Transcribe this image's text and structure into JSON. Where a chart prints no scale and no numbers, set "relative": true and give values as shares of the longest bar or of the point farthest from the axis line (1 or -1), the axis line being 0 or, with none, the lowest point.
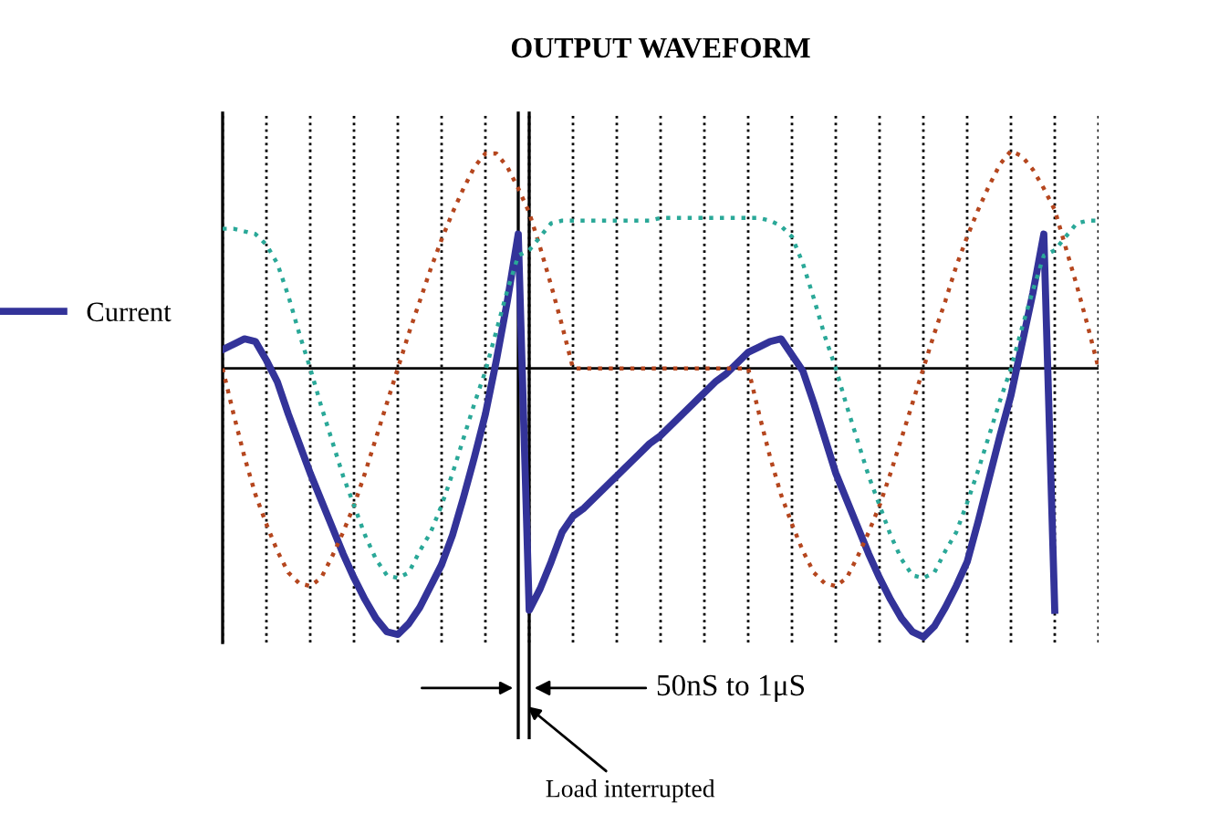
{
  "chart_data": {
    "type": "line",
    "title": "OUTPUT WAVEFORM",
    "relative": true,
    "grid": "x",
    "legend": "left",
    "categories": [
      null,
      null,
      null,
      null,
      null,
      null,
      null,
      null,
      null,
      null,
      null,
      null,
      null,
      null,
      null,
      null,
      null,
      null,
      null,
      null,
      null,
      null,
      null,
      null,
      null,
      null,
      null,
      null,
      null,
      null,
      null,
      null,
      null,
      null,
      null,
      null,
      null,
      null,
      null,
      null,
      null,
      null,
      null,
      null,
      null,
      null,
      null,
      null,
      null,
      null,
      null,
      null,
      null,
      null,
      null,
      null,
      null,
      null,
      null,
      null,
      null,
      null,
      null,
      null,
      null,
      null,
      null,
      null,
      null,
      null,
      null,
      null,
      null,
      null,
      null,
      null,
      null,
      null,
      null,
      null,
      null
    ],
    "series": [
      {
        "name": "Current",
        "color": "#333399",
        "line_style": "solid",
        "values": [
          0.07,
          0.09,
          0.11,
          0.1,
          0.03,
          -0.05,
          -0.17,
          -0.28,
          -0.39,
          -0.49,
          -0.59,
          -0.69,
          -0.78,
          -0.86,
          -0.93,
          -0.98,
          -0.99,
          -0.95,
          -0.89,
          -0.81,
          -0.73,
          -0.62,
          -0.48,
          -0.33,
          -0.17,
          0.03,
          0.25,
          0.5,
          -0.9,
          -0.82,
          -0.72,
          -0.61,
          -0.55,
          -0.52,
          -0.48,
          -0.44,
          -0.4,
          -0.36,
          -0.32,
          -0.28,
          -0.25,
          -0.21,
          -0.17,
          -0.13,
          -0.09,
          -0.05,
          -0.02,
          0.02,
          0.06,
          0.08,
          0.1,
          0.11,
          0.05,
          -0.01,
          -0.13,
          -0.26,
          -0.39,
          -0.49,
          -0.59,
          -0.69,
          -0.78,
          -0.86,
          -0.93,
          -0.98,
          -1.0,
          -0.96,
          -0.89,
          -0.81,
          -0.72,
          -0.57,
          -0.41,
          -0.25,
          -0.1,
          0.09,
          0.28,
          0.5,
          -0.9,
          null,
          null,
          null,
          null
        ]
      },
      {
        "color": "#b5461e",
        "line_style": "dotted",
        "values": [
          0,
          -0.17,
          -0.33,
          -0.47,
          -0.58,
          -0.68,
          -0.76,
          -0.8,
          -0.81,
          -0.78,
          -0.7,
          -0.61,
          -0.51,
          -0.39,
          -0.26,
          -0.13,
          0,
          0.13,
          0.25,
          0.37,
          0.48,
          0.58,
          0.67,
          0.75,
          0.8,
          0.8,
          0.75,
          0.67,
          0.58,
          0.45,
          0.31,
          0.16,
          0,
          0,
          0,
          0,
          0,
          0,
          0,
          0,
          0,
          0,
          0,
          0,
          0,
          0,
          0,
          0,
          0,
          -0.17,
          -0.33,
          -0.47,
          -0.58,
          -0.68,
          -0.76,
          -0.8,
          -0.81,
          -0.78,
          -0.7,
          -0.61,
          -0.51,
          -0.39,
          -0.26,
          -0.13,
          0,
          0.13,
          0.25,
          0.38,
          0.49,
          0.59,
          0.68,
          0.76,
          0.81,
          0.79,
          0.74,
          0.67,
          0.59,
          0.45,
          0.31,
          0.16,
          0
        ]
      },
      {
        "color": "#2aa898",
        "line_style": "dotted",
        "values": [
          0.52,
          0.52,
          0.51,
          0.5,
          0.46,
          0.39,
          0.27,
          0.13,
          0,
          -0.14,
          -0.27,
          -0.4,
          -0.51,
          -0.62,
          -0.71,
          -0.77,
          -0.78,
          -0.76,
          -0.68,
          -0.61,
          -0.51,
          -0.39,
          -0.26,
          -0.13,
          -0.01,
          0.14,
          0.29,
          0.42,
          0.44,
          0.49,
          0.54,
          0.55,
          0.55,
          0.55,
          0.55,
          0.55,
          0.55,
          0.55,
          0.55,
          0.55,
          0.56,
          0.56,
          0.56,
          0.56,
          0.56,
          0.56,
          0.56,
          0.56,
          0.56,
          0.56,
          0.55,
          0.53,
          0.49,
          0.39,
          0.26,
          0.12,
          0,
          -0.14,
          -0.27,
          -0.4,
          -0.51,
          -0.62,
          -0.71,
          -0.77,
          -0.78,
          -0.76,
          -0.68,
          -0.61,
          -0.5,
          -0.38,
          -0.25,
          -0.12,
          0,
          0.15,
          0.29,
          0.42,
          0.44,
          0.49,
          0.54,
          0.55,
          0.55
        ]
      }
    ],
    "annotations": [
      "50nS to 1μS",
      "Load interrupted"
    ]
  }
}
